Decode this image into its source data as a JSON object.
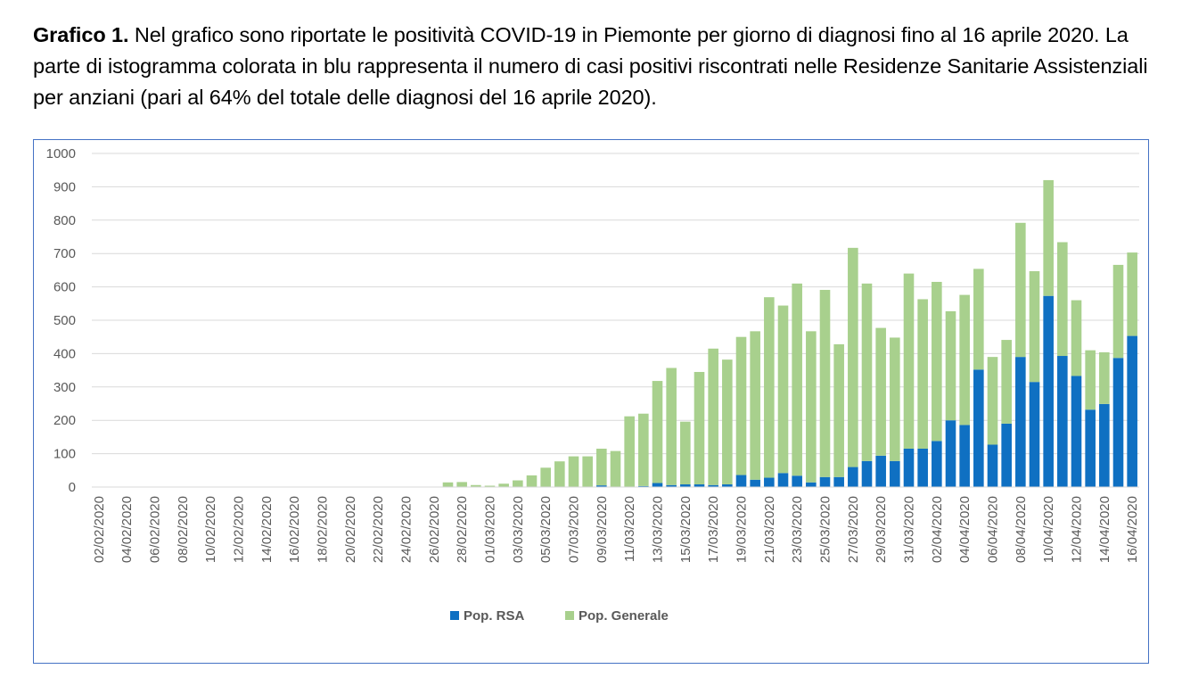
{
  "caption": {
    "lead": "Grafico 1.",
    "text": " Nel grafico sono riportate le positività COVID-19 in Piemonte per giorno di diagnosi fino al 16 aprile 2020. La parte di istogramma colorata in blu rappresenta il numero di casi positivi riscontrati nelle Residenze Sanitarie Assistenziali per anziani (pari al 64% del totale delle diagnosi del 16 aprile 2020)."
  },
  "colors": {
    "rsa": "#0f70c2",
    "generale": "#a8d08d",
    "grid": "#d9d9d9",
    "frame": "#4472c4"
  },
  "chart_data": {
    "type": "bar",
    "stacked": true,
    "ylim": [
      0,
      1000
    ],
    "yticks": [
      0,
      100,
      200,
      300,
      400,
      500,
      600,
      700,
      800,
      900,
      1000
    ],
    "grid": true,
    "legend_position": "bottom",
    "categories": [
      "02/02/2020",
      "03/02/2020",
      "04/02/2020",
      "05/02/2020",
      "06/02/2020",
      "07/02/2020",
      "08/02/2020",
      "09/02/2020",
      "10/02/2020",
      "11/02/2020",
      "12/02/2020",
      "13/02/2020",
      "14/02/2020",
      "15/02/2020",
      "16/02/2020",
      "17/02/2020",
      "18/02/2020",
      "19/02/2020",
      "20/02/2020",
      "21/02/2020",
      "22/02/2020",
      "23/02/2020",
      "24/02/2020",
      "25/02/2020",
      "26/02/2020",
      "27/02/2020",
      "28/02/2020",
      "29/02/2020",
      "01/03/2020",
      "02/03/2020",
      "03/03/2020",
      "04/03/2020",
      "05/03/2020",
      "06/03/2020",
      "07/03/2020",
      "08/03/2020",
      "09/03/2020",
      "10/03/2020",
      "11/03/2020",
      "12/03/2020",
      "13/03/2020",
      "14/03/2020",
      "15/03/2020",
      "16/03/2020",
      "17/03/2020",
      "18/03/2020",
      "19/03/2020",
      "20/03/2020",
      "21/03/2020",
      "22/03/2020",
      "23/03/2020",
      "24/03/2020",
      "25/03/2020",
      "26/03/2020",
      "27/03/2020",
      "28/03/2020",
      "29/03/2020",
      "30/03/2020",
      "31/03/2020",
      "01/04/2020",
      "02/04/2020",
      "03/04/2020",
      "04/04/2020",
      "05/04/2020",
      "06/04/2020",
      "07/04/2020",
      "08/04/2020",
      "09/04/2020",
      "10/04/2020",
      "11/04/2020",
      "12/04/2020",
      "13/04/2020",
      "14/04/2020",
      "15/04/2020",
      "16/04/2020"
    ],
    "labeled_categories": [
      "02/02/2020",
      "04/02/2020",
      "06/02/2020",
      "08/02/2020",
      "10/02/2020",
      "12/02/2020",
      "14/02/2020",
      "16/02/2020",
      "18/02/2020",
      "20/02/2020",
      "22/02/2020",
      "24/02/2020",
      "26/02/2020",
      "28/02/2020",
      "01/03/2020",
      "03/03/2020",
      "05/03/2020",
      "07/03/2020",
      "09/03/2020",
      "11/03/2020",
      "13/03/2020",
      "15/03/2020",
      "17/03/2020",
      "19/03/2020",
      "21/03/2020",
      "23/03/2020",
      "25/03/2020",
      "27/03/2020",
      "29/03/2020",
      "31/03/2020",
      "02/04/2020",
      "04/04/2020",
      "06/04/2020",
      "08/04/2020",
      "10/04/2020",
      "12/04/2020",
      "14/04/2020",
      "16/04/2020"
    ],
    "series": [
      {
        "name": "Pop. RSA",
        "values": [
          0,
          0,
          0,
          0,
          0,
          0,
          0,
          0,
          0,
          0,
          0,
          0,
          0,
          0,
          0,
          0,
          0,
          0,
          0,
          0,
          0,
          0,
          0,
          0,
          0,
          0,
          0,
          0,
          0,
          0,
          0,
          0,
          0,
          0,
          0,
          0,
          5,
          0,
          0,
          3,
          12,
          6,
          8,
          8,
          6,
          8,
          36,
          22,
          28,
          42,
          34,
          14,
          30,
          30,
          60,
          78,
          94,
          78,
          115,
          115,
          138,
          200,
          186,
          352,
          127,
          190,
          390,
          315,
          573,
          393,
          333,
          232,
          249,
          387,
          453
        ]
      },
      {
        "name": "Pop. Generale",
        "values": [
          0,
          0,
          0,
          0,
          0,
          0,
          0,
          0,
          0,
          0,
          0,
          0,
          0,
          0,
          0,
          0,
          0,
          0,
          0,
          0,
          0,
          0,
          0,
          0,
          0,
          14,
          15,
          6,
          4,
          10,
          20,
          35,
          58,
          77,
          92,
          92,
          110,
          108,
          212,
          217,
          306,
          351,
          188,
          337,
          409,
          374,
          414,
          445,
          541,
          502,
          576,
          453,
          561,
          398,
          657,
          532,
          383,
          370,
          525,
          448,
          477,
          327,
          390,
          302,
          263,
          251,
          402,
          332,
          347,
          341,
          227,
          178,
          155,
          279,
          250
        ]
      }
    ]
  }
}
